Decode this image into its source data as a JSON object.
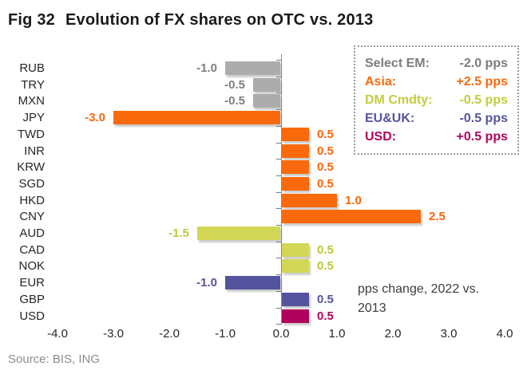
{
  "title": {
    "fig": "Fig 32",
    "text": "Evolution of FX shares on OTC vs. 2013"
  },
  "annotation": "pps change, 2022 vs. 2013",
  "source": "Source: BIS, ING",
  "legend": {
    "rows": [
      {
        "label": "Select EM:",
        "value": "-2.0 pps",
        "color": "#7c7c7c"
      },
      {
        "label": "Asia:",
        "value": "+2.5 pps",
        "color": "#fa6a0d"
      },
      {
        "label": "DM Cmdty:",
        "value": "-0.5 pps",
        "color": "#c3cc3d"
      },
      {
        "label": "EU&UK:",
        "value": "-0.5 pps",
        "color": "#54539e"
      },
      {
        "label": "USD:",
        "value": "+0.5 pps",
        "color": "#b0045c"
      }
    ]
  },
  "chart_data": {
    "type": "bar",
    "orientation": "horizontal",
    "title": "Evolution of FX shares on OTC vs. 2013",
    "categories": [
      "RUB",
      "TRY",
      "MXN",
      "JPY",
      "TWD",
      "INR",
      "KRW",
      "SGD",
      "HKD",
      "CNY",
      "AUD",
      "CAD",
      "NOK",
      "EUR",
      "GBP",
      "USD"
    ],
    "values": [
      -1.0,
      -0.5,
      -0.5,
      -3.0,
      0.5,
      0.5,
      0.5,
      0.5,
      1.0,
      2.5,
      -1.5,
      0.5,
      0.5,
      -1.0,
      0.5,
      0.5
    ],
    "value_labels": [
      "-1.0",
      "-0.5",
      "-0.5",
      "-3.0",
      "0.5",
      "0.5",
      "0.5",
      "0.5",
      "1.0",
      "2.5",
      "-1.5",
      "0.5",
      "0.5",
      "-1.0",
      "0.5",
      "0.5"
    ],
    "groups": [
      "em",
      "em",
      "em",
      "asia",
      "asia",
      "asia",
      "asia",
      "asia",
      "asia",
      "asia",
      "cmdty",
      "cmdty",
      "cmdty",
      "eu",
      "eu",
      "usd"
    ],
    "group_colors": {
      "em": {
        "bar": "#acacac",
        "text": "#7f7f7f"
      },
      "asia": {
        "bar": "#fa6a0d",
        "text": "#f8650a"
      },
      "cmdty": {
        "bar": "#d2d755",
        "text": "#bdc937"
      },
      "eu": {
        "bar": "#54539e",
        "text": "#54539e"
      },
      "usd": {
        "bar": "#b0045c",
        "text": "#b0045c"
      }
    },
    "xlabel": "pps change, 2022 vs. 2013",
    "ylabel": "",
    "xlim": [
      -4.0,
      4.0
    ],
    "xticks": [
      "-4.0",
      "-3.0",
      "-2.0",
      "-1.0",
      "0.0",
      "1.0",
      "2.0",
      "3.0",
      "4.0"
    ],
    "xtick_values": [
      -4,
      -3,
      -2,
      -1,
      0,
      1,
      2,
      3,
      4
    ],
    "grid": false,
    "legend_position": "top-right"
  }
}
